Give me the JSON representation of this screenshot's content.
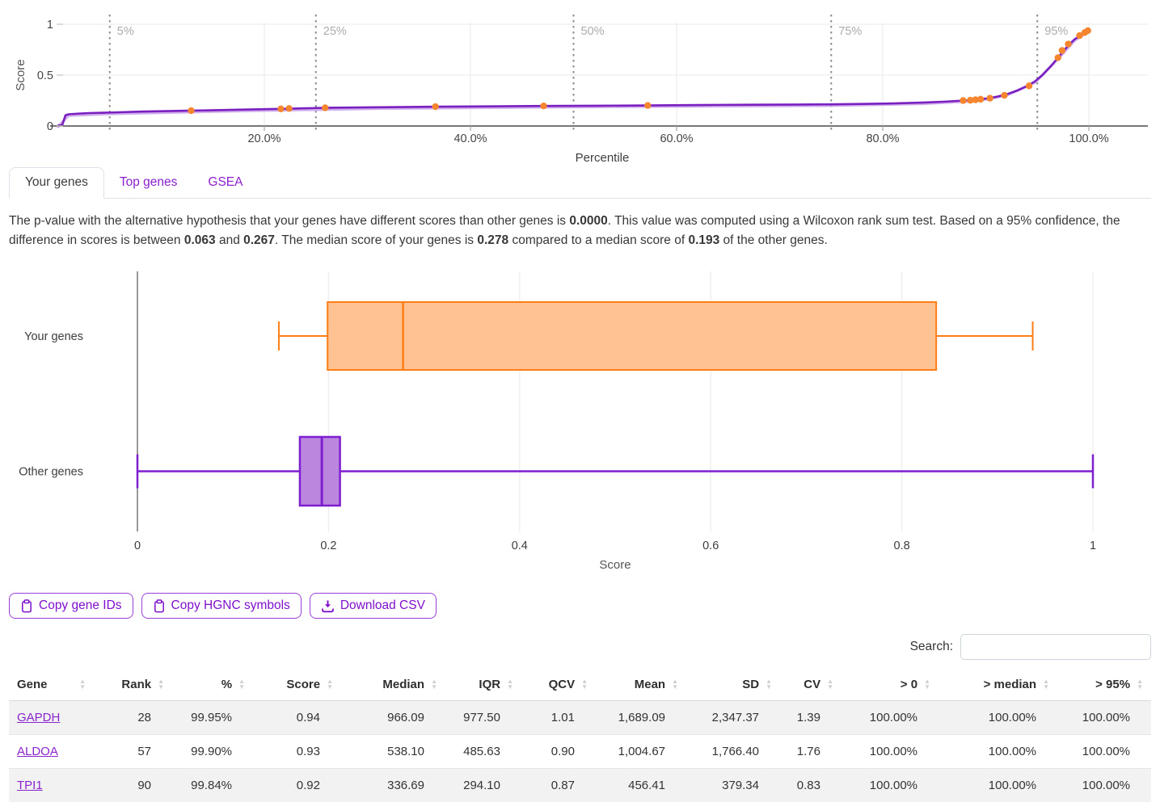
{
  "tabs": [
    {
      "label": "Your genes",
      "active": true
    },
    {
      "label": "Top genes",
      "active": false
    },
    {
      "label": "GSEA",
      "active": false
    }
  ],
  "paragraph": {
    "segments": [
      "The p-value with the alternative hypothesis that your genes have different scores than other genes is ",
      "0.0000",
      ". This value was computed using a Wilcoxon rank sum test. Based on a 95% confidence, the difference in scores is between ",
      "0.063",
      " and ",
      "0.267",
      ". The median score of your genes is ",
      "0.278",
      " compared to a median score of ",
      "0.193",
      " of the other genes."
    ]
  },
  "toolbar": {
    "copy_gene_ids": "Copy gene IDs",
    "copy_hgnc": "Copy HGNC symbols",
    "download_csv": "Download CSV"
  },
  "search": {
    "label": "Search:",
    "value": "",
    "placeholder": ""
  },
  "table": {
    "columns": [
      "Gene",
      "Rank",
      "%",
      "Score",
      "Median",
      "IQR",
      "QCV",
      "Mean",
      "SD",
      "CV",
      "> 0",
      "> median",
      "> 95%"
    ],
    "rows": [
      [
        "GAPDH",
        "28",
        "99.95%",
        "0.94",
        "966.09",
        "977.50",
        "1.01",
        "1,689.09",
        "2,347.37",
        "1.39",
        "100.00%",
        "100.00%",
        "100.00%"
      ],
      [
        "ALDOA",
        "57",
        "99.90%",
        "0.93",
        "538.10",
        "485.63",
        "0.90",
        "1,004.67",
        "1,766.40",
        "1.76",
        "100.00%",
        "100.00%",
        "100.00%"
      ],
      [
        "TPI1",
        "90",
        "99.84%",
        "0.92",
        "336.69",
        "294.10",
        "0.87",
        "456.41",
        "379.34",
        "0.83",
        "100.00%",
        "100.00%",
        "100.00%"
      ]
    ]
  },
  "colors": {
    "purple_accent": "#8a1fd1",
    "purple_curve": "#7a1fc0",
    "purple_curve_light": "#cba4ea",
    "purple_box_fill": "#bb86de",
    "purple_box_stroke": "#7d1fd1",
    "orange_dot": "#f5862f",
    "orange_box_fill": "#ffc292",
    "orange_box_stroke": "#fd7e14",
    "grid": "#ededed",
    "axis_dark": "#4a4a4a",
    "dotted_line": "#8d8d8d",
    "dotted_label": "#ababab",
    "tick_text": "#444444",
    "stripe": "#f2f2f2"
  },
  "chart_data": [
    {
      "type": "line",
      "title": "Gene score vs percentile",
      "xlabel": "Percentile",
      "ylabel": "Score",
      "xlim": [
        0,
        100
      ],
      "ylim": [
        0,
        1
      ],
      "grid": true,
      "x_ticks": [
        {
          "pct": 20,
          "label": "20.0%"
        },
        {
          "pct": 40,
          "label": "40.0%"
        },
        {
          "pct": 60,
          "label": "60.0%"
        },
        {
          "pct": 80,
          "label": "80.0%"
        },
        {
          "pct": 100,
          "label": "100.0%"
        }
      ],
      "y_ticks": [
        {
          "value": 0,
          "label": "0"
        },
        {
          "value": 0.5,
          "label": "0.5"
        },
        {
          "value": 1,
          "label": "1"
        }
      ],
      "percentile_markers": [
        {
          "pct": 5,
          "label": "5%"
        },
        {
          "pct": 25,
          "label": "25%"
        },
        {
          "pct": 50,
          "label": "50%"
        },
        {
          "pct": 75,
          "label": "75%"
        },
        {
          "pct": 95,
          "label": "95%"
        }
      ],
      "curve": [
        [
          0,
          0.005
        ],
        [
          0.4,
          0.01
        ],
        [
          0.7,
          0.105
        ],
        [
          1,
          0.115
        ],
        [
          2,
          0.122
        ],
        [
          3,
          0.127
        ],
        [
          5,
          0.132
        ],
        [
          8,
          0.141
        ],
        [
          13,
          0.151
        ],
        [
          18,
          0.161
        ],
        [
          22,
          0.169
        ],
        [
          26,
          0.179
        ],
        [
          31,
          0.184
        ],
        [
          37,
          0.19
        ],
        [
          42,
          0.193
        ],
        [
          47,
          0.197
        ],
        [
          52,
          0.199
        ],
        [
          57,
          0.202
        ],
        [
          62,
          0.206
        ],
        [
          67,
          0.209
        ],
        [
          72,
          0.211
        ],
        [
          75,
          0.213
        ],
        [
          78,
          0.217
        ],
        [
          81,
          0.222
        ],
        [
          84,
          0.231
        ],
        [
          86,
          0.239
        ],
        [
          88,
          0.251
        ],
        [
          89,
          0.259
        ],
        [
          90,
          0.269
        ],
        [
          91,
          0.286
        ],
        [
          92,
          0.311
        ],
        [
          93,
          0.346
        ],
        [
          94,
          0.391
        ],
        [
          94.8,
          0.441
        ],
        [
          95.5,
          0.501
        ],
        [
          96.3,
          0.586
        ],
        [
          97,
          0.671
        ],
        [
          97.5,
          0.731
        ],
        [
          98,
          0.791
        ],
        [
          98.6,
          0.851
        ],
        [
          99.2,
          0.891
        ],
        [
          99.6,
          0.921
        ],
        [
          100,
          0.945
        ]
      ],
      "gene_points": [
        [
          12.9,
          0.151
        ],
        [
          21.6,
          0.168
        ],
        [
          22.4,
          0.172
        ],
        [
          25.9,
          0.179
        ],
        [
          36.6,
          0.19
        ],
        [
          47.1,
          0.197
        ],
        [
          57.2,
          0.202
        ],
        [
          87.8,
          0.25
        ],
        [
          88.5,
          0.253
        ],
        [
          89,
          0.258
        ],
        [
          89.5,
          0.263
        ],
        [
          90.4,
          0.273
        ],
        [
          91.8,
          0.301
        ],
        [
          94.2,
          0.394
        ],
        [
          97,
          0.671
        ],
        [
          97.4,
          0.742
        ],
        [
          98,
          0.805
        ],
        [
          99.1,
          0.888
        ],
        [
          99.6,
          0.918
        ],
        [
          99.9,
          0.937
        ]
      ]
    },
    {
      "type": "boxplot",
      "xlabel": "Score",
      "xlim": [
        0,
        1
      ],
      "x_ticks": [
        {
          "value": 0,
          "label": "0"
        },
        {
          "value": 0.2,
          "label": "0.2"
        },
        {
          "value": 0.4,
          "label": "0.4"
        },
        {
          "value": 0.6,
          "label": "0.6"
        },
        {
          "value": 0.8,
          "label": "0.8"
        },
        {
          "value": 1,
          "label": "1"
        }
      ],
      "series": [
        {
          "name": "Your genes",
          "color": "orange",
          "min": 0.148,
          "q1": 0.199,
          "median": 0.278,
          "q3": 0.836,
          "max": 0.937
        },
        {
          "name": "Other genes",
          "color": "purple",
          "min": 0.0,
          "q1": 0.17,
          "median": 0.193,
          "q3": 0.212,
          "max": 1.0
        }
      ]
    }
  ]
}
